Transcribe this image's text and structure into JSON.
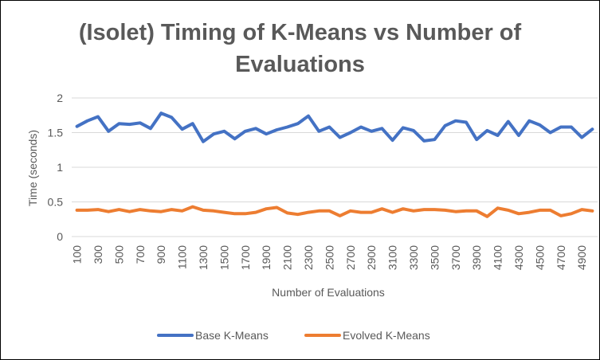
{
  "chart_data": {
    "type": "line",
    "title_line1": "(Isolet) Timing of K-Means vs Number of",
    "title_line2": "Evaluations",
    "xlabel": "Number of Evaluations",
    "ylabel": "Time (seconds)",
    "ylim": [
      0,
      2
    ],
    "yticks": [
      0,
      0.5,
      1,
      1.5,
      2
    ],
    "ytick_labels": [
      "0",
      "0.5",
      "1",
      "1.5",
      "2"
    ],
    "grid": "horizontal",
    "legend_position": "bottom",
    "x": [
      100,
      200,
      300,
      400,
      500,
      600,
      700,
      800,
      900,
      1000,
      1100,
      1200,
      1300,
      1400,
      1500,
      1600,
      1700,
      1800,
      1900,
      2000,
      2100,
      2200,
      2300,
      2400,
      2500,
      2600,
      2700,
      2800,
      2900,
      3000,
      3100,
      3200,
      3300,
      3400,
      3500,
      3600,
      3700,
      3800,
      3900,
      4000,
      4100,
      4200,
      4300,
      4400,
      4500,
      4600,
      4700,
      4800,
      4900,
      5000
    ],
    "x_tick_labels": [
      "100",
      "300",
      "500",
      "700",
      "900",
      "1100",
      "1300",
      "1500",
      "1700",
      "1900",
      "2100",
      "2300",
      "2500",
      "2700",
      "2900",
      "3100",
      "3300",
      "3500",
      "3700",
      "3900",
      "4100",
      "4300",
      "4500",
      "4700",
      "4900"
    ],
    "series": [
      {
        "name": "Base K-Means",
        "color": "#4472C4",
        "values": [
          1.59,
          1.67,
          1.73,
          1.52,
          1.63,
          1.62,
          1.64,
          1.56,
          1.78,
          1.72,
          1.55,
          1.63,
          1.37,
          1.48,
          1.52,
          1.41,
          1.52,
          1.56,
          1.48,
          1.54,
          1.58,
          1.63,
          1.74,
          1.52,
          1.58,
          1.43,
          1.5,
          1.58,
          1.52,
          1.56,
          1.39,
          1.57,
          1.53,
          1.38,
          1.4,
          1.6,
          1.67,
          1.65,
          1.4,
          1.53,
          1.46,
          1.66,
          1.46,
          1.67,
          1.61,
          1.5,
          1.58,
          1.58,
          1.43,
          1.55
        ]
      },
      {
        "name": "Evolved K-Means",
        "color": "#ED7D31",
        "values": [
          0.38,
          0.38,
          0.39,
          0.36,
          0.39,
          0.36,
          0.39,
          0.37,
          0.36,
          0.39,
          0.37,
          0.43,
          0.38,
          0.37,
          0.35,
          0.33,
          0.33,
          0.35,
          0.4,
          0.42,
          0.34,
          0.32,
          0.35,
          0.37,
          0.37,
          0.3,
          0.37,
          0.35,
          0.35,
          0.4,
          0.35,
          0.4,
          0.37,
          0.39,
          0.39,
          0.38,
          0.36,
          0.37,
          0.37,
          0.29,
          0.41,
          0.38,
          0.33,
          0.35,
          0.38,
          0.38,
          0.3,
          0.33,
          0.39,
          0.37
        ]
      }
    ]
  }
}
